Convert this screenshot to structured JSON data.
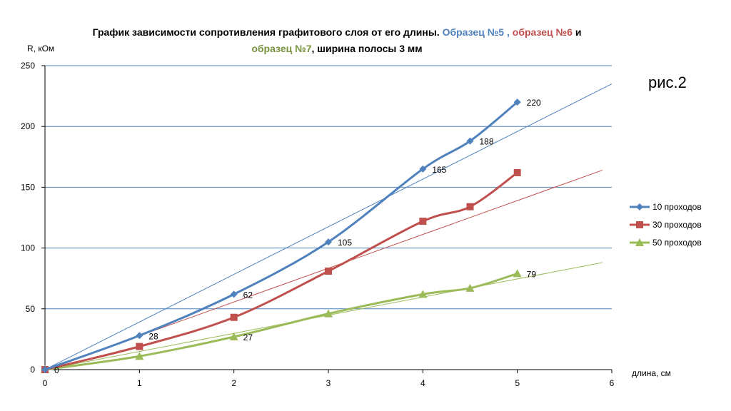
{
  "figure_label": "рис.2",
  "chart_data": {
    "type": "line",
    "title_line1": [
      {
        "text": "График зависимости сопротивления графитового слоя от его длины. ",
        "color": "#000000"
      },
      {
        "text": "Образец №5 , ",
        "color": "#4F81BD"
      },
      {
        "text": "образец №6 ",
        "color": "#C0504D"
      },
      {
        "text": "и",
        "color": "#000000"
      }
    ],
    "title_line2": [
      {
        "text": "образец №7",
        "color": "#77933C"
      },
      {
        "text": ", ширина полосы 3 мм",
        "color": "#000000"
      }
    ],
    "xlabel": "длина, см",
    "ylabel": "R, кОм",
    "xlim": [
      0,
      6
    ],
    "ylim": [
      0,
      250
    ],
    "xticks": [
      0,
      1,
      2,
      3,
      4,
      5,
      6
    ],
    "yticks": [
      0,
      50,
      100,
      150,
      200,
      250
    ],
    "grid": "horizontal",
    "legend_position": "right",
    "series": [
      {
        "name": "10 проходов",
        "color": "#4F81BD",
        "marker": "diamond",
        "x": [
          0,
          1,
          2,
          3,
          4,
          4.5,
          5
        ],
        "y": [
          0,
          28,
          62,
          105,
          165,
          188,
          220
        ],
        "labels": [
          "0",
          "28",
          "62",
          "105",
          "165",
          "188",
          "220"
        ],
        "trend": {
          "x": [
            0,
            6
          ],
          "y": [
            0,
            235
          ]
        }
      },
      {
        "name": "30 проходов",
        "color": "#C0504D",
        "marker": "square",
        "x": [
          0,
          1,
          2,
          3,
          4,
          4.5,
          5
        ],
        "y": [
          0,
          19,
          43,
          81,
          122,
          134,
          162
        ],
        "labels": [],
        "trend": {
          "x": [
            0,
            5.9
          ],
          "y": [
            0,
            164
          ]
        }
      },
      {
        "name": "50 проходов",
        "color": "#9BBB59",
        "marker": "triangle",
        "x": [
          0,
          1,
          2,
          3,
          4,
          4.5,
          5
        ],
        "y": [
          0,
          11,
          27,
          46,
          62,
          67,
          79
        ],
        "labels": [
          "",
          "",
          "27",
          "",
          "",
          "",
          "79"
        ],
        "trend": {
          "x": [
            0,
            5.9
          ],
          "y": [
            0,
            88
          ]
        }
      }
    ]
  }
}
